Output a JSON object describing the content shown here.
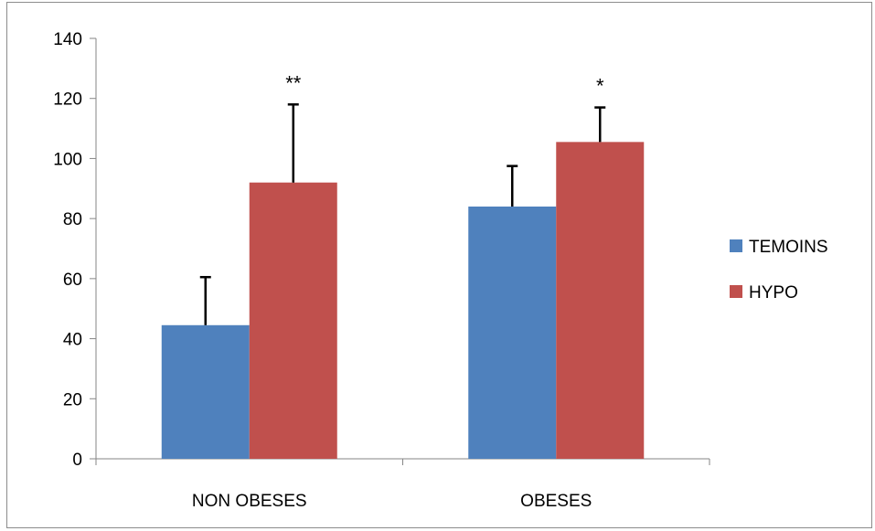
{
  "chart_data": {
    "type": "bar",
    "title": "",
    "xlabel": "",
    "ylabel": "",
    "categories": [
      "NON OBESES",
      "OBESES"
    ],
    "series": [
      {
        "name": "TEMOINS",
        "color": "#4f81bd",
        "values": [
          44.5,
          84
        ],
        "error": [
          16,
          13.5
        ]
      },
      {
        "name": "HYPO",
        "color": "#c0504d",
        "values": [
          92,
          105.5
        ],
        "error": [
          26,
          11.5
        ]
      }
    ],
    "ylim": [
      0,
      140
    ],
    "yticks": [
      "0",
      "20",
      "40",
      "60",
      "80",
      "100",
      "120",
      "140"
    ],
    "annotations": [
      {
        "category": 0,
        "series": 1,
        "text": "**"
      },
      {
        "category": 1,
        "series": 1,
        "text": "*"
      }
    ],
    "grid": false,
    "legend_position": "right"
  }
}
